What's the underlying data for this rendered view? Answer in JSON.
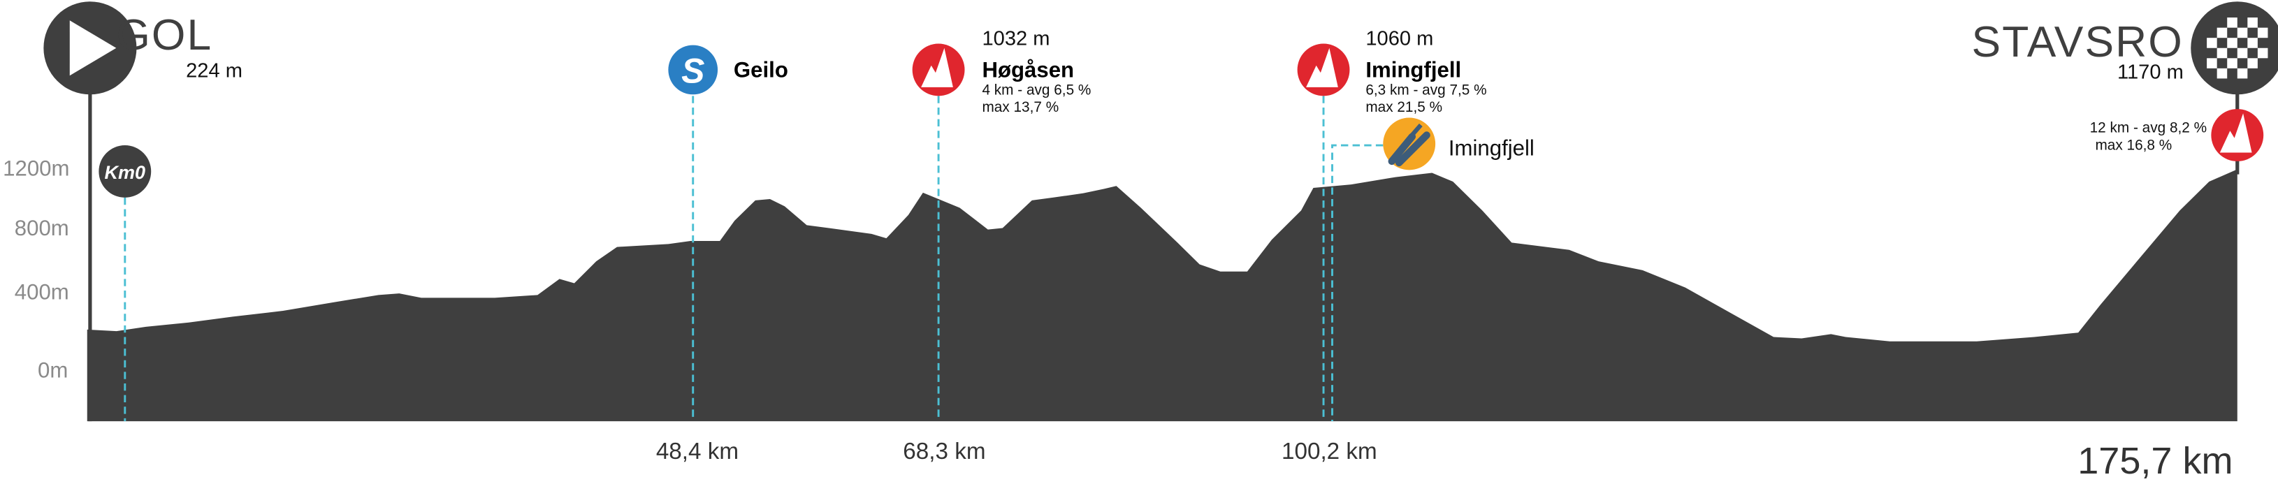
{
  "start": {
    "name": "GOL",
    "altitude": "224 m",
    "km0_label": "Km0",
    "icon": "play-triangle-icon"
  },
  "finish": {
    "name": "STAVSRO",
    "altitude": "1170 m",
    "icon": "checkered-flag-icon",
    "climb": {
      "detail1": "12 km - avg 8,2 %",
      "detail2": "max 16,8 %",
      "icon": "mountain-icon"
    }
  },
  "sprint": {
    "name": "Geilo",
    "icon_letter": "S",
    "km_label": "48,4 km",
    "color": "#2a7fc4"
  },
  "climbs": [
    {
      "altitude": "1032 m",
      "name": "Høgåsen",
      "detail1": "4 km - avg 6,5 %",
      "detail2": "max 13,7 %",
      "km_label": "68,3 km",
      "color": "#e0262e"
    },
    {
      "altitude": "1060 m",
      "name": "Imingfjell",
      "detail1": "6,3 km - avg 7,5 %",
      "detail2": "max 21,5 %",
      "km_label": "100,2 km",
      "color": "#e0262e"
    }
  ],
  "feed_zone": {
    "name": "Imingfjell",
    "icon": "fork-knife-icon",
    "color": "#f5a623"
  },
  "total_distance": "175,7 km",
  "colors": {
    "profile": "#3f3f3f",
    "marker_line": "#4bbfd3",
    "axis_label": "#8a8a8a"
  },
  "chart_data": {
    "type": "area",
    "xlabel": "",
    "ylabel": "",
    "y_ticks": [
      "0m",
      "400m",
      "800m",
      "1200m"
    ],
    "xlim": [
      0,
      175.7
    ],
    "grid": false,
    "x": [
      0,
      2.4,
      4.8,
      8.3,
      11.9,
      16.0,
      20.2,
      23.8,
      25.5,
      27.3,
      33.3,
      36.8,
      38.6,
      39.8,
      41.6,
      43.3,
      47.5,
      49.3,
      51.7,
      52.9,
      54.6,
      55.8,
      57.0,
      58.8,
      60.6,
      64.1,
      65.3,
      67.1,
      68.3,
      71.3,
      73.6,
      74.8,
      77.2,
      79.0,
      81.4,
      83.1,
      84.1,
      86.1,
      89.1,
      90.9,
      92.6,
      94.8,
      96.8,
      99.2,
      100.2,
      103.3,
      106.9,
      109.9,
      111.6,
      114.0,
      116.4,
      121.1,
      123.5,
      127.1,
      130.6,
      134.2,
      137.8,
      140.1,
      142.5,
      143.7,
      147.3,
      154.4,
      159.1,
      162.7,
      164.5,
      167.5,
      171.0,
      173.4,
      175.7
    ],
    "y": [
      224,
      214,
      240,
      266,
      300,
      334,
      386,
      428,
      437,
      411,
      411,
      428,
      523,
      497,
      626,
      711,
      728,
      746,
      746,
      866,
      986,
      994,
      951,
      840,
      823,
      788,
      763,
      900,
      1032,
      943,
      814,
      823,
      986,
      1003,
      1028,
      1054,
      1071,
      943,
      737,
      608,
      566,
      566,
      754,
      926,
      1060,
      1080,
      1123,
      1148,
      1097,
      926,
      737,
      694,
      626,
      574,
      471,
      326,
      180,
      171,
      197,
      180,
      154,
      154,
      180,
      206,
      369,
      626,
      926,
      1097,
      1170
    ]
  }
}
